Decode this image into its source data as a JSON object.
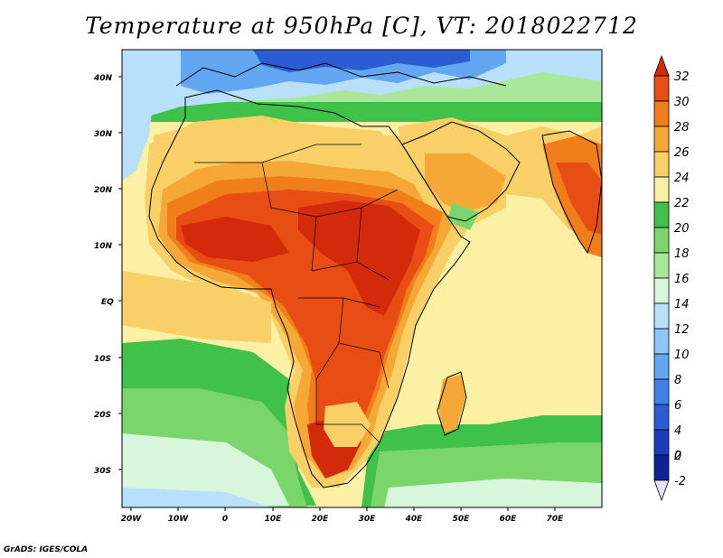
{
  "title": "Temperature at 950hPa [C], VT: 2018022712",
  "credit": "GrADS: IGES/COLA",
  "map": {
    "lat_labels": [
      "40N",
      "30N",
      "20N",
      "10N",
      "EQ",
      "10S",
      "20S",
      "30S"
    ],
    "lat_values": [
      40,
      30,
      20,
      10,
      0,
      -10,
      -20,
      -30
    ],
    "lon_labels": [
      "20W",
      "10W",
      "0",
      "10E",
      "20E",
      "30E",
      "40E",
      "50E",
      "60E",
      "70E"
    ],
    "lon_values": [
      -20,
      -10,
      0,
      10,
      20,
      30,
      40,
      50,
      60,
      70
    ]
  },
  "colorbar": {
    "levels": [
      "32",
      "30",
      "28",
      "26",
      "24",
      "22",
      "20",
      "18",
      "16",
      "14",
      "12",
      "10",
      "8",
      "6",
      "4",
      "2",
      "0",
      "-2"
    ],
    "colors": [
      "#d42a0c",
      "#e84d14",
      "#f07e1a",
      "#f5a836",
      "#f9cf68",
      "#fbf0a4",
      "#40c14a",
      "#7ad66b",
      "#a9e89a",
      "#d8f6dc",
      "#b8e0fb",
      "#8ec6f8",
      "#63a6f2",
      "#3f82e6",
      "#2a5dd4",
      "#1b3dba",
      "#0f2294",
      "#e6e0fb"
    ]
  },
  "field_colors": {
    "deep_cold": "#2a5dd4",
    "cold": "#63a6f2",
    "cool": "#b8e0fb",
    "pale": "#d8f6dc",
    "light_green": "#a9e89a",
    "green": "#7ad66b",
    "dark_green": "#40c14a",
    "pale_yellow": "#fbf0a4",
    "yellow": "#f9cf68",
    "orange_light": "#f5a836",
    "orange": "#f07e1a",
    "red_orange": "#e84d14",
    "red": "#d42a0c"
  }
}
